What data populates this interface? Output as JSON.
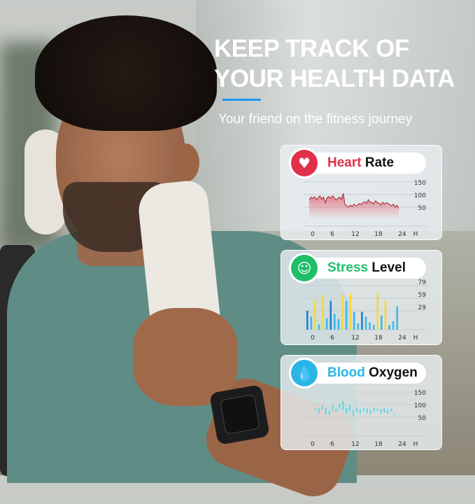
{
  "headline": {
    "line1": "KEEP TRACK OF",
    "line2": "YOUR HEALTH DATA",
    "subtitle": "Your friend on the fitness journey",
    "accent": "#2196f3"
  },
  "cards": [
    {
      "title_colored": "Heart",
      "title_rest": "Rate",
      "color": "#e0304a",
      "icon": "heart-icon",
      "y_ticks": [
        "150",
        "100",
        "50"
      ],
      "x_ticks": [
        "0",
        "6",
        "12",
        "18",
        "24",
        "H"
      ],
      "chart_data": {
        "type": "area",
        "x_unit": "H",
        "y_ticks": [
          50,
          100,
          150
        ],
        "values": [
          128,
          140,
          135,
          142,
          130,
          138,
          145,
          132,
          140,
          118,
          138,
          142,
          135,
          145,
          138,
          128,
          135,
          140,
          132,
          155,
          110,
          105,
          100,
          108,
          102,
          112,
          105,
          108,
          115,
          110,
          118,
          122,
          115,
          130,
          118,
          120,
          112,
          125,
          118,
          115,
          108,
          120,
          112,
          118,
          115,
          110,
          105,
          112,
          100,
          108,
          95
        ]
      }
    },
    {
      "title_colored": "Stress",
      "title_rest": "Level",
      "color": "#1fbf6a",
      "icon": "stress-person-icon",
      "y_ticks": [
        "79",
        "59",
        "29"
      ],
      "x_ticks": [
        "0",
        "6",
        "12",
        "18",
        "24",
        "H"
      ],
      "chart_data": {
        "type": "bar",
        "x_unit": "H",
        "y_ticks": [
          29,
          59,
          79
        ],
        "values": [
          36,
          25,
          57,
          10,
          66,
          22,
          55,
          30,
          20,
          67,
          55,
          69,
          34,
          12,
          34,
          25,
          14,
          9,
          70,
          27,
          56,
          9,
          16,
          45
        ],
        "levels": [
          "dark",
          "light",
          "yellow",
          "light",
          "yellow",
          "light",
          "dark",
          "light",
          "light",
          "yellow",
          "light",
          "yellow",
          "light",
          "light",
          "dark",
          "light",
          "light",
          "light",
          "yellow",
          "light",
          "yellow",
          "light",
          "light",
          "light"
        ],
        "colors": {
          "dark": "#1f7fd0",
          "light": "#3cb8e8",
          "yellow": "#f2d83a"
        }
      }
    },
    {
      "title_colored": "Blood",
      "title_rest": "Oxygen",
      "color": "#29b6e6",
      "icon": "water-drop-icon",
      "y_ticks": [
        "150",
        "100",
        "50"
      ],
      "x_ticks": [
        "0",
        "6",
        "12",
        "18",
        "24",
        "H"
      ],
      "chart_data": {
        "type": "range-bar",
        "x_unit": "H",
        "y_ticks": [
          50,
          100,
          150
        ],
        "ranges": [
          [
            92,
            100
          ],
          [
            80,
            98
          ],
          [
            95,
            108
          ],
          [
            75,
            102
          ],
          [
            72,
            88
          ],
          [
            88,
            112
          ],
          [
            85,
            98
          ],
          [
            98,
            118
          ],
          [
            92,
            128
          ],
          [
            80,
            100
          ],
          [
            88,
            112
          ],
          [
            70,
            92
          ],
          [
            85,
            102
          ],
          [
            78,
            95
          ],
          [
            88,
            100
          ],
          [
            80,
            98
          ],
          [
            75,
            92
          ],
          [
            85,
            102
          ],
          [
            88,
            98
          ],
          [
            78,
            96
          ],
          [
            82,
            100
          ],
          [
            78,
            96
          ],
          [
            86,
            98
          ],
          [
            70,
            74
          ]
        ]
      }
    }
  ]
}
